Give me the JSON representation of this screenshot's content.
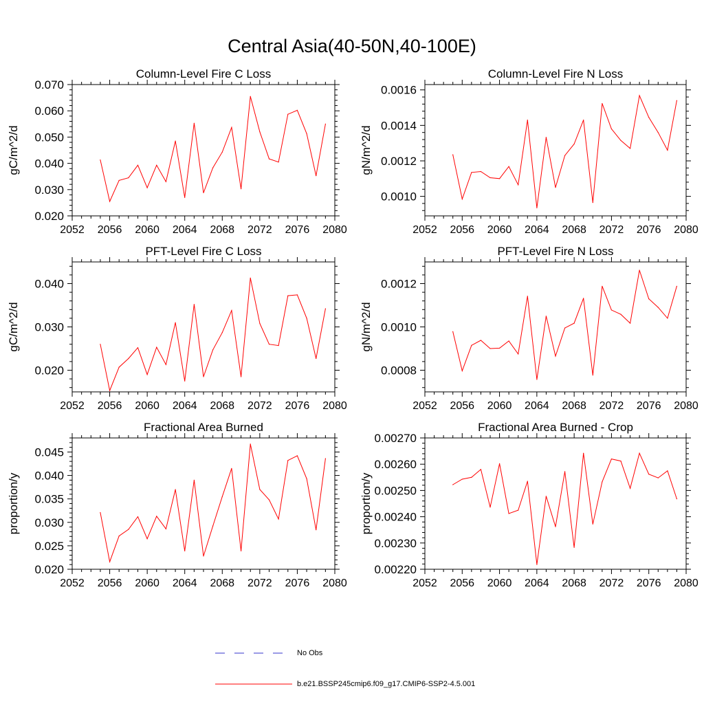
{
  "figure_title": "Central Asia(40-50N,40-100E)",
  "legend": {
    "placement": "bottom-center",
    "entries": [
      {
        "label": "No Obs",
        "color": "#3333cc",
        "style": "dashed"
      },
      {
        "label": "b.e21.BSSP245cmip6.f09_g17.CMIP6-SSP2-4.5.001",
        "color": "#ff0000",
        "style": "solid"
      }
    ]
  },
  "chart_data": [
    {
      "type": "line",
      "title": "Column-Level Fire C Loss",
      "ylabel": "gC/m^2/d",
      "xlabel": "",
      "xlim": [
        2052,
        2080
      ],
      "ylim": [
        0.02,
        0.07
      ],
      "xticks": [
        "2052",
        "2056",
        "2060",
        "2064",
        "2068",
        "2072",
        "2076",
        "2080"
      ],
      "yticks": [
        "0.020",
        "0.030",
        "0.040",
        "0.050",
        "0.060",
        "0.070"
      ],
      "grid": false,
      "x": [
        2055,
        2056,
        2057,
        2058,
        2059,
        2060,
        2061,
        2062,
        2063,
        2064,
        2065,
        2066,
        2067,
        2068,
        2069,
        2070,
        2071,
        2072,
        2073,
        2074,
        2075,
        2076,
        2077,
        2078,
        2079
      ],
      "series": [
        {
          "color": "#ff0000",
          "values": [
            0.0413,
            0.0255,
            0.0335,
            0.0345,
            0.0393,
            0.0307,
            0.0393,
            0.033,
            0.0485,
            0.027,
            0.0553,
            0.0288,
            0.0383,
            0.0443,
            0.0537,
            0.0303,
            0.0655,
            0.052,
            0.0417,
            0.0405,
            0.0587,
            0.0602,
            0.0513,
            0.0353,
            0.055
          ]
        }
      ]
    },
    {
      "type": "line",
      "title": "Column-Level Fire N Loss",
      "ylabel": "gN/m^2/d",
      "xlabel": "",
      "xlim": [
        2052,
        2080
      ],
      "ylim": [
        0.00089,
        0.00163
      ],
      "xticks": [
        "2052",
        "2056",
        "2060",
        "2064",
        "2068",
        "2072",
        "2076",
        "2080"
      ],
      "yticks": [
        "0.0010",
        "0.0012",
        "0.0014",
        "0.0016"
      ],
      "grid": false,
      "x": [
        2055,
        2056,
        2057,
        2058,
        2059,
        2060,
        2061,
        2062,
        2063,
        2064,
        2065,
        2066,
        2067,
        2068,
        2069,
        2070,
        2071,
        2072,
        2073,
        2074,
        2075,
        2076,
        2077,
        2078,
        2079
      ],
      "series": [
        {
          "color": "#ff0000",
          "values": [
            0.001235,
            0.000985,
            0.001135,
            0.00114,
            0.001105,
            0.0011,
            0.001168,
            0.001065,
            0.00143,
            0.000935,
            0.001333,
            0.00105,
            0.00123,
            0.001295,
            0.00143,
            0.000965,
            0.001523,
            0.00138,
            0.001315,
            0.00127,
            0.001568,
            0.001445,
            0.00136,
            0.00126,
            0.00154
          ]
        }
      ]
    },
    {
      "type": "line",
      "title": "PFT-Level Fire C Loss",
      "ylabel": "gC/m^2/d",
      "xlabel": "",
      "xlim": [
        2052,
        2080
      ],
      "ylim": [
        0.015,
        0.045
      ],
      "xticks": [
        "2052",
        "2056",
        "2060",
        "2064",
        "2068",
        "2072",
        "2076",
        "2080"
      ],
      "yticks": [
        "0.020",
        "0.030",
        "0.040"
      ],
      "grid": false,
      "x": [
        2055,
        2056,
        2057,
        2058,
        2059,
        2060,
        2061,
        2062,
        2063,
        2064,
        2065,
        2066,
        2067,
        2068,
        2069,
        2070,
        2071,
        2072,
        2073,
        2074,
        2075,
        2076,
        2077,
        2078,
        2079
      ],
      "series": [
        {
          "color": "#ff0000",
          "values": [
            0.026,
            0.0153,
            0.0207,
            0.0227,
            0.0252,
            0.019,
            0.0253,
            0.0213,
            0.031,
            0.0175,
            0.0352,
            0.0185,
            0.0247,
            0.0287,
            0.0338,
            0.0185,
            0.0413,
            0.0308,
            0.026,
            0.0257,
            0.0372,
            0.0374,
            0.032,
            0.0227,
            0.0342
          ]
        }
      ]
    },
    {
      "type": "line",
      "title": "PFT-Level Fire N Loss",
      "ylabel": "gN/m^2/d",
      "xlabel": "",
      "xlim": [
        2052,
        2080
      ],
      "ylim": [
        0.0007,
        0.0013
      ],
      "xticks": [
        "2052",
        "2056",
        "2060",
        "2064",
        "2068",
        "2072",
        "2076",
        "2080"
      ],
      "yticks": [
        "0.0008",
        "0.0010",
        "0.0012"
      ],
      "grid": false,
      "x": [
        2055,
        2056,
        2057,
        2058,
        2059,
        2060,
        2061,
        2062,
        2063,
        2064,
        2065,
        2066,
        2067,
        2068,
        2069,
        2070,
        2071,
        2072,
        2073,
        2074,
        2075,
        2076,
        2077,
        2078,
        2079
      ],
      "series": [
        {
          "color": "#ff0000",
          "values": [
            0.000978,
            0.000797,
            0.000915,
            0.000938,
            0.0009,
            0.000902,
            0.000935,
            0.000875,
            0.001142,
            0.000757,
            0.00105,
            0.000865,
            0.000995,
            0.001017,
            0.001132,
            0.000777,
            0.001188,
            0.001078,
            0.001058,
            0.001017,
            0.001262,
            0.00113,
            0.00109,
            0.00104,
            0.001188
          ]
        }
      ]
    },
    {
      "type": "line",
      "title": "Fractional Area Burned",
      "ylabel": "proportion/y",
      "xlabel": "",
      "xlim": [
        2052,
        2080
      ],
      "ylim": [
        0.02,
        0.048
      ],
      "xticks": [
        "2052",
        "2056",
        "2060",
        "2064",
        "2068",
        "2072",
        "2076",
        "2080"
      ],
      "yticks": [
        "0.020",
        "0.025",
        "0.030",
        "0.035",
        "0.040",
        "0.045"
      ],
      "grid": false,
      "x": [
        2055,
        2056,
        2057,
        2058,
        2059,
        2060,
        2061,
        2062,
        2063,
        2064,
        2065,
        2066,
        2067,
        2068,
        2069,
        2070,
        2071,
        2072,
        2073,
        2074,
        2075,
        2076,
        2077,
        2078,
        2079
      ],
      "series": [
        {
          "color": "#ff0000",
          "values": [
            0.0321,
            0.0216,
            0.0271,
            0.0285,
            0.0312,
            0.0265,
            0.0313,
            0.0286,
            0.037,
            0.0239,
            0.039,
            0.0228,
            0.0292,
            0.0355,
            0.0415,
            0.0239,
            0.0467,
            0.037,
            0.0348,
            0.0307,
            0.0432,
            0.0442,
            0.0393,
            0.0284,
            0.0436
          ]
        }
      ]
    },
    {
      "type": "line",
      "title": "Fractional Area Burned - Crop",
      "ylabel": "proportion/y",
      "xlabel": "",
      "xlim": [
        2052,
        2080
      ],
      "ylim": [
        0.0022,
        0.0027
      ],
      "xticks": [
        "2052",
        "2056",
        "2060",
        "2064",
        "2068",
        "2072",
        "2076",
        "2080"
      ],
      "yticks": [
        "0.00220",
        "0.00230",
        "0.00240",
        "0.00250",
        "0.00260",
        "0.00270"
      ],
      "grid": false,
      "x": [
        2055,
        2056,
        2057,
        2058,
        2059,
        2060,
        2061,
        2062,
        2063,
        2064,
        2065,
        2066,
        2067,
        2068,
        2069,
        2070,
        2071,
        2072,
        2073,
        2074,
        2075,
        2076,
        2077,
        2078,
        2079
      ],
      "series": [
        {
          "color": "#ff0000",
          "values": [
            0.002522,
            0.002543,
            0.00255,
            0.00258,
            0.002436,
            0.002602,
            0.002412,
            0.002425,
            0.002535,
            0.002218,
            0.002478,
            0.002362,
            0.002572,
            0.002283,
            0.002642,
            0.002372,
            0.002533,
            0.00262,
            0.002612,
            0.002508,
            0.002642,
            0.002562,
            0.002548,
            0.002575,
            0.002468
          ]
        }
      ]
    }
  ]
}
